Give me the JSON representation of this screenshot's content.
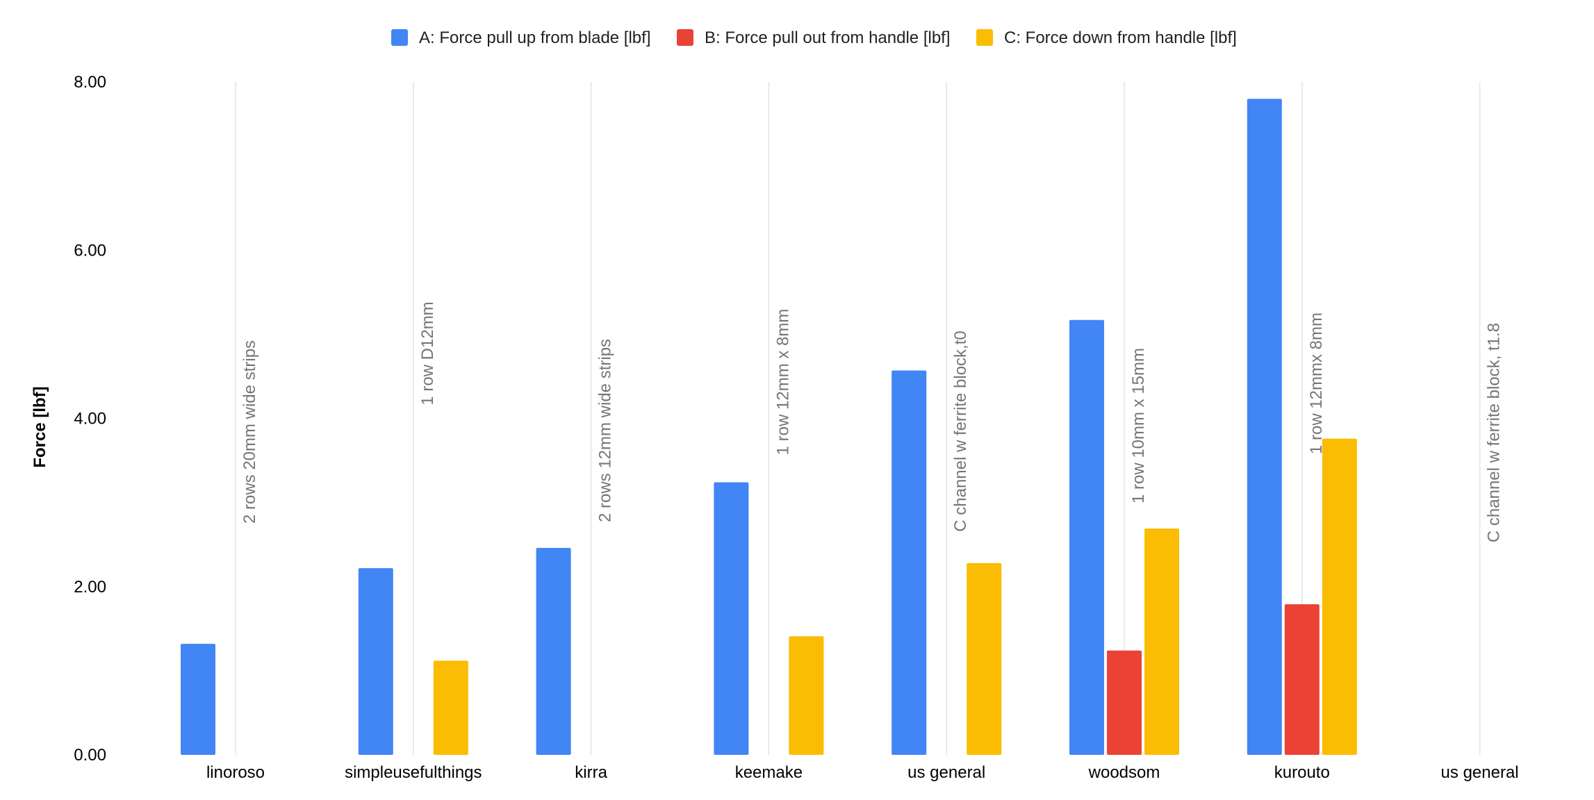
{
  "chart_data": {
    "type": "bar",
    "title": "",
    "xlabel": "",
    "ylabel": "Force [lbf]",
    "ylim": [
      0,
      8
    ],
    "yticks": [
      "0.00",
      "2.00",
      "4.00",
      "6.00",
      "8.00"
    ],
    "grid": "vertical lines at category boundaries",
    "legend_position": "top",
    "categories": [
      "linoroso",
      "simpleusefulthings",
      "kirra",
      "keemake",
      "us general",
      "woodsom",
      "kurouto",
      "us general"
    ],
    "series": [
      {
        "name": "A: Force pull up from blade [lbf]",
        "color": "#4285F4",
        "values": [
          1.32,
          2.22,
          2.46,
          3.24,
          4.57,
          5.17,
          7.8,
          null
        ]
      },
      {
        "name": "B: Force pull out from handle [lbf]",
        "color": "#EA4335",
        "values": [
          null,
          null,
          null,
          null,
          null,
          1.24,
          1.79,
          null
        ]
      },
      {
        "name": "C: Force down from handle [lbf]",
        "color": "#FBBC04",
        "values": [
          null,
          1.12,
          null,
          1.41,
          2.28,
          2.69,
          3.76,
          null
        ]
      }
    ],
    "annotations": [
      "2 rows 20mm wide strips",
      "1 row D12mm",
      "2 rows 12mm wide strips",
      "1 row 12mm x 8mm",
      "C channel w ferrite block,t0",
      "1 row 10mm x 15mm",
      "1 row 12mmx 8mm",
      "C channel w ferrite block, t1.8"
    ]
  }
}
